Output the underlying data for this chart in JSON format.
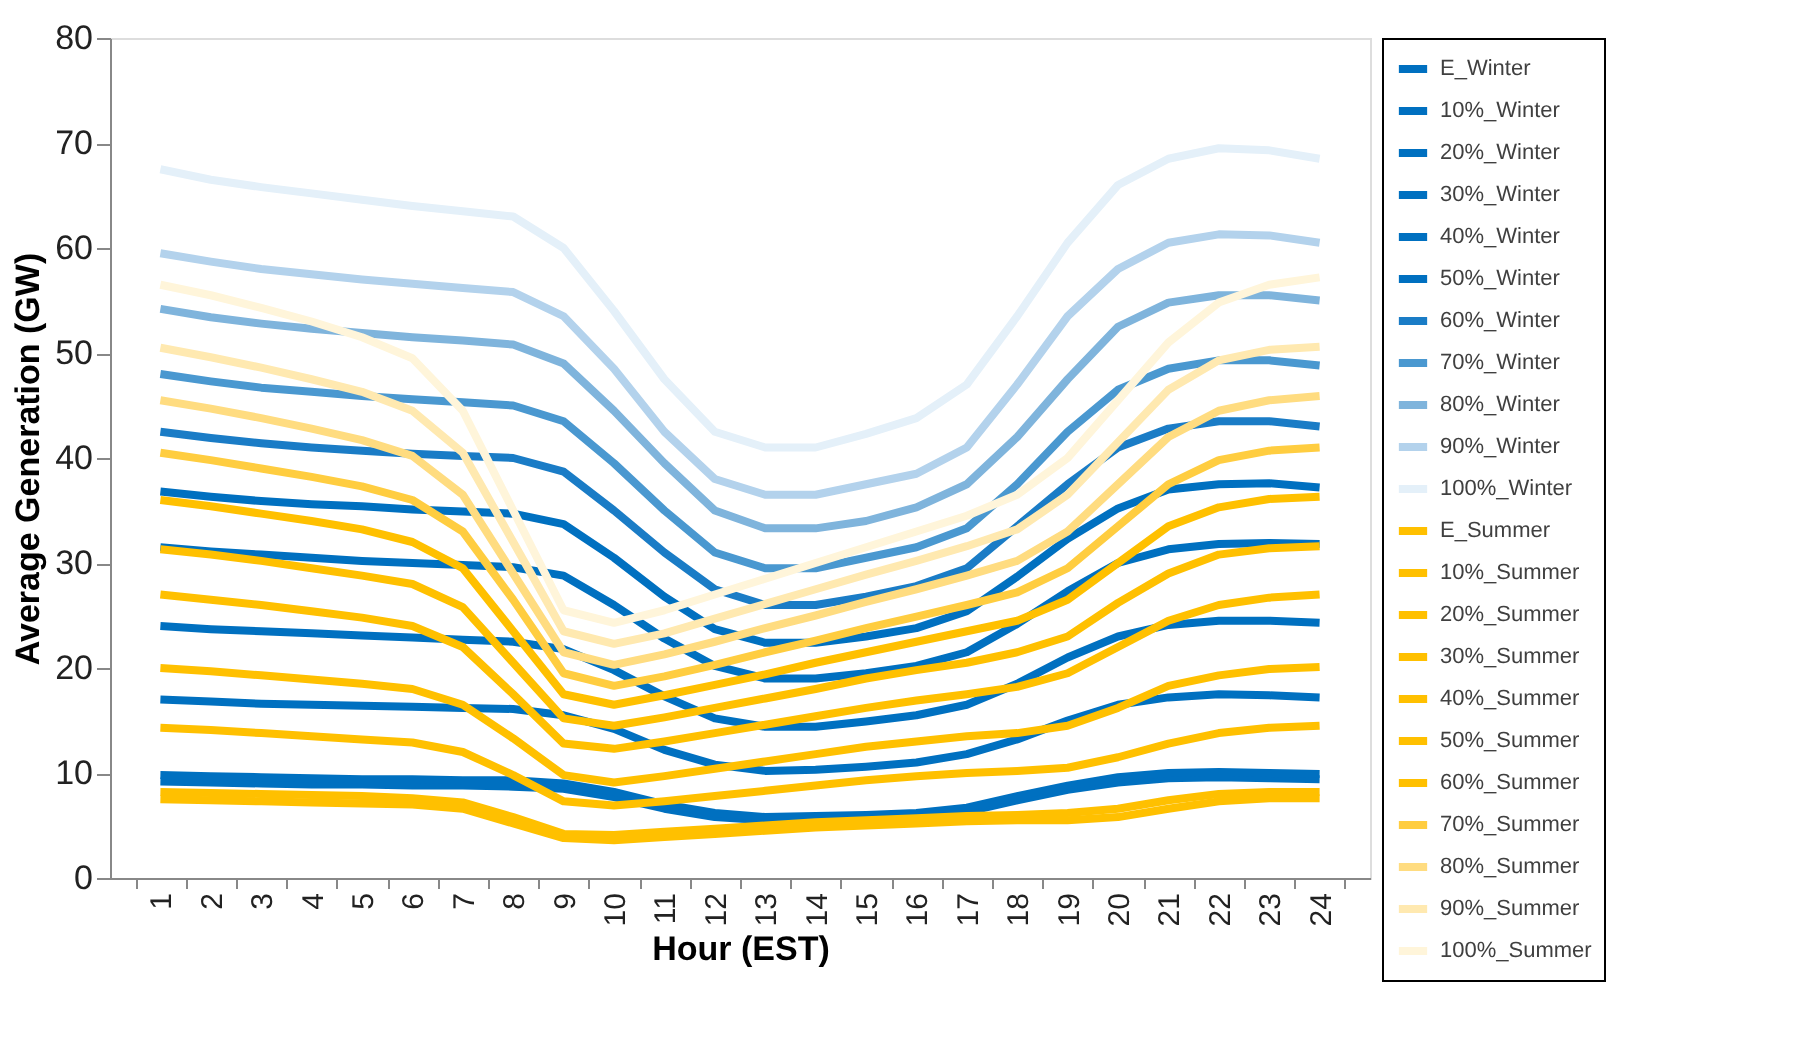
{
  "chart_data": {
    "type": "line",
    "xlabel": "Hour (EST)",
    "ylabel": "Average Generation (GW)",
    "categories": [
      "1",
      "2",
      "3",
      "4",
      "5",
      "6",
      "7",
      "8",
      "9",
      "10",
      "11",
      "12",
      "13",
      "14",
      "15",
      "16",
      "17",
      "18",
      "19",
      "20",
      "21",
      "22",
      "23",
      "24"
    ],
    "ylim": [
      0,
      80
    ],
    "yticks": [
      0,
      10,
      20,
      30,
      40,
      50,
      60,
      70,
      80
    ],
    "grid": false,
    "legend": "right",
    "marker": "none",
    "line_style": "solid",
    "series": [
      {
        "name": "E_Winter",
        "color": "#0070c0",
        "values": [
          9.2,
          9.1,
          9.0,
          8.9,
          8.9,
          8.8,
          8.8,
          8.7,
          8.5,
          7.7,
          6.6,
          5.8,
          5.5,
          5.6,
          5.7,
          5.9,
          6.3,
          7.4,
          8.4,
          9.1,
          9.5,
          9.6,
          9.5,
          9.4
        ]
      },
      {
        "name": "10%_Winter",
        "color": "#0070c0",
        "values": [
          9.8,
          9.7,
          9.6,
          9.5,
          9.4,
          9.4,
          9.3,
          9.3,
          9.0,
          8.2,
          7.0,
          6.2,
          5.8,
          5.9,
          6.0,
          6.2,
          6.7,
          7.8,
          8.8,
          9.6,
          10.0,
          10.1,
          10.0,
          9.9
        ]
      },
      {
        "name": "20%_Winter",
        "color": "#0070c0",
        "values": [
          17.0,
          16.8,
          16.6,
          16.5,
          16.4,
          16.3,
          16.2,
          16.1,
          15.5,
          14.2,
          12.2,
          10.8,
          10.2,
          10.3,
          10.6,
          11.0,
          11.8,
          13.2,
          15.0,
          16.5,
          17.2,
          17.5,
          17.4,
          17.2
        ]
      },
      {
        "name": "30%_Winter",
        "color": "#0070c0",
        "values": [
          24.0,
          23.7,
          23.5,
          23.3,
          23.1,
          22.9,
          22.7,
          22.5,
          21.8,
          19.8,
          17.3,
          15.2,
          14.4,
          14.4,
          14.9,
          15.5,
          16.5,
          18.5,
          21.0,
          23.0,
          24.1,
          24.5,
          24.5,
          24.3
        ]
      },
      {
        "name": "40%_Winter",
        "color": "#0070c0",
        "values": [
          31.5,
          31.1,
          30.8,
          30.5,
          30.2,
          30.0,
          29.8,
          29.6,
          28.8,
          26.0,
          22.8,
          20.2,
          19.0,
          19.0,
          19.5,
          20.2,
          21.5,
          24.2,
          27.3,
          30.0,
          31.3,
          31.8,
          31.9,
          31.8
        ]
      },
      {
        "name": "50%_Winter",
        "color": "#0070c0",
        "values": [
          36.8,
          36.3,
          35.9,
          35.6,
          35.4,
          35.1,
          34.9,
          34.7,
          33.7,
          30.5,
          26.8,
          23.7,
          22.4,
          22.4,
          23.0,
          23.8,
          25.4,
          28.7,
          32.3,
          35.2,
          37.0,
          37.5,
          37.6,
          37.2
        ]
      },
      {
        "name": "60%_Winter",
        "color": "#1a7cc6",
        "values": [
          42.5,
          41.9,
          41.4,
          41.0,
          40.7,
          40.4,
          40.2,
          40.0,
          38.7,
          35.0,
          31.0,
          27.5,
          26.0,
          26.0,
          26.8,
          27.8,
          29.5,
          33.5,
          37.5,
          41.0,
          42.8,
          43.5,
          43.5,
          43.0
        ]
      },
      {
        "name": "70%_Winter",
        "color": "#4a98d0",
        "values": [
          48.0,
          47.3,
          46.7,
          46.3,
          45.9,
          45.6,
          45.3,
          45.0,
          43.5,
          39.5,
          35.0,
          31.0,
          29.5,
          29.5,
          30.5,
          31.5,
          33.3,
          37.5,
          42.5,
          46.5,
          48.5,
          49.3,
          49.3,
          48.8
        ]
      },
      {
        "name": "80%_Winter",
        "color": "#7fb4dc",
        "values": [
          54.2,
          53.4,
          52.8,
          52.3,
          51.9,
          51.5,
          51.2,
          50.8,
          49.0,
          44.5,
          39.5,
          35.0,
          33.3,
          33.3,
          34.0,
          35.3,
          37.5,
          42.0,
          47.5,
          52.5,
          54.8,
          55.5,
          55.5,
          55.0
        ]
      },
      {
        "name": "90%_Winter",
        "color": "#b3d2ec",
        "values": [
          59.5,
          58.7,
          58.0,
          57.5,
          57.0,
          56.6,
          56.2,
          55.8,
          53.5,
          48.5,
          42.5,
          38.0,
          36.5,
          36.5,
          37.5,
          38.5,
          41.0,
          47.0,
          53.5,
          58.0,
          60.5,
          61.3,
          61.2,
          60.5
        ]
      },
      {
        "name": "100%_Winter",
        "color": "#e4f0f9",
        "values": [
          67.5,
          66.5,
          65.8,
          65.2,
          64.6,
          64.0,
          63.5,
          63.0,
          60.0,
          54.0,
          47.5,
          42.5,
          41.0,
          41.0,
          42.3,
          43.8,
          47.0,
          53.5,
          60.5,
          66.0,
          68.5,
          69.5,
          69.3,
          68.5
        ]
      },
      {
        "name": "E_Summer",
        "color": "#ffc000",
        "values": [
          7.5,
          7.4,
          7.3,
          7.2,
          7.1,
          7.0,
          6.6,
          5.2,
          3.8,
          3.6,
          3.9,
          4.2,
          4.5,
          4.8,
          5.0,
          5.2,
          5.4,
          5.5,
          5.5,
          5.8,
          6.6,
          7.3,
          7.6,
          7.6
        ]
      },
      {
        "name": "10%_Summer",
        "color": "#ffc000",
        "values": [
          8.2,
          8.1,
          8.0,
          7.9,
          7.8,
          7.6,
          7.2,
          5.8,
          4.2,
          4.1,
          4.4,
          4.7,
          5.0,
          5.3,
          5.5,
          5.7,
          5.9,
          6.0,
          6.2,
          6.6,
          7.4,
          8.0,
          8.2,
          8.2
        ]
      },
      {
        "name": "20%_Summer",
        "color": "#ffc000",
        "values": [
          14.3,
          14.1,
          13.8,
          13.5,
          13.2,
          12.9,
          12.0,
          9.8,
          7.3,
          6.9,
          7.3,
          7.8,
          8.3,
          8.8,
          9.3,
          9.7,
          10.0,
          10.2,
          10.5,
          11.5,
          12.8,
          13.8,
          14.3,
          14.5
        ]
      },
      {
        "name": "30%_Summer",
        "color": "#ffc000",
        "values": [
          20.0,
          19.7,
          19.3,
          18.9,
          18.5,
          18.0,
          16.5,
          13.3,
          9.8,
          9.1,
          9.7,
          10.4,
          11.1,
          11.8,
          12.5,
          13.0,
          13.5,
          13.8,
          14.5,
          16.2,
          18.3,
          19.3,
          19.9,
          20.1
        ]
      },
      {
        "name": "40%_Summer",
        "color": "#ffc000",
        "values": [
          27.0,
          26.5,
          26.0,
          25.4,
          24.8,
          24.0,
          22.0,
          17.5,
          12.8,
          12.3,
          13.0,
          13.8,
          14.6,
          15.4,
          16.2,
          16.9,
          17.5,
          18.2,
          19.5,
          22.0,
          24.5,
          26.0,
          26.7,
          27.0
        ]
      },
      {
        "name": "50%_Summer",
        "color": "#ffc000",
        "values": [
          31.3,
          30.8,
          30.2,
          29.5,
          28.8,
          28.0,
          25.8,
          20.5,
          15.2,
          14.5,
          15.3,
          16.2,
          17.1,
          18.0,
          19.0,
          19.8,
          20.5,
          21.5,
          23.0,
          26.2,
          29.0,
          30.8,
          31.4,
          31.6
        ]
      },
      {
        "name": "60%_Summer",
        "color": "#ffc000",
        "values": [
          36.0,
          35.4,
          34.7,
          34.0,
          33.2,
          32.0,
          29.5,
          23.5,
          17.5,
          16.5,
          17.4,
          18.4,
          19.4,
          20.5,
          21.5,
          22.5,
          23.5,
          24.5,
          26.5,
          30.0,
          33.5,
          35.3,
          36.1,
          36.3
        ]
      },
      {
        "name": "70%_Summer",
        "color": "#ffcd40",
        "values": [
          40.5,
          39.8,
          39.0,
          38.2,
          37.3,
          36.0,
          33.0,
          26.5,
          19.5,
          18.3,
          19.2,
          20.3,
          21.5,
          22.6,
          23.8,
          24.9,
          26.0,
          27.2,
          29.5,
          33.5,
          37.5,
          39.8,
          40.7,
          41.0
        ]
      },
      {
        "name": "80%_Summer",
        "color": "#ffdc80",
        "values": [
          45.5,
          44.7,
          43.8,
          42.8,
          41.7,
          40.2,
          36.5,
          29.0,
          21.5,
          20.3,
          21.3,
          22.5,
          23.8,
          25.0,
          26.3,
          27.5,
          28.8,
          30.2,
          33.0,
          37.5,
          42.0,
          44.5,
          45.5,
          45.9
        ]
      },
      {
        "name": "90%_Summer",
        "color": "#ffe9b0",
        "values": [
          50.5,
          49.6,
          48.6,
          47.5,
          46.3,
          44.5,
          40.5,
          32.0,
          23.5,
          22.3,
          23.3,
          24.7,
          26.1,
          27.5,
          28.9,
          30.2,
          31.6,
          33.2,
          36.5,
          41.5,
          46.5,
          49.3,
          50.3,
          50.6
        ]
      },
      {
        "name": "100%_Summer",
        "color": "#fff5da",
        "values": [
          56.5,
          55.5,
          54.3,
          53.0,
          51.5,
          49.5,
          44.5,
          35.0,
          25.5,
          24.3,
          25.5,
          27.0,
          28.5,
          30.0,
          31.5,
          33.0,
          34.5,
          36.5,
          40.0,
          45.5,
          51.0,
          54.8,
          56.5,
          57.2
        ]
      }
    ]
  }
}
